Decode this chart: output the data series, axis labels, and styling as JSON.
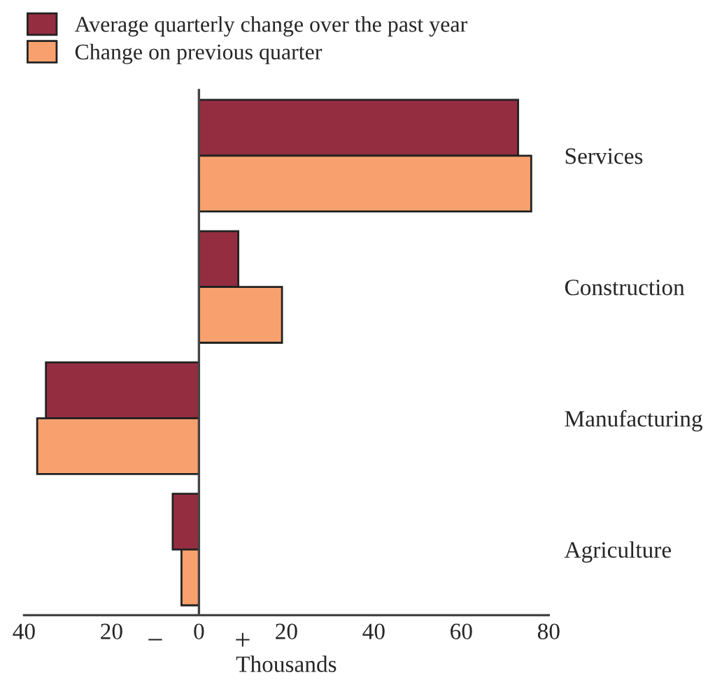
{
  "chart_data": {
    "type": "bar",
    "orientation": "horizontal",
    "xlabel": "Thousands",
    "categories": [
      "Services",
      "Construction",
      "Manufacturing",
      "Agriculture"
    ],
    "series": [
      {
        "name": "Average quarterly change over the past year",
        "color": "#952d40",
        "values": [
          73,
          9,
          -35,
          -6
        ]
      },
      {
        "name": "Change on previous quarter",
        "color": "#f9a16e",
        "values": [
          76,
          19,
          -37,
          -4
        ]
      }
    ],
    "xlim": [
      -40,
      80
    ],
    "xticks": [
      {
        "value": -40,
        "label": "40"
      },
      {
        "value": -20,
        "label": "20"
      },
      0,
      20,
      40,
      60,
      80
    ],
    "annotations": [
      "−",
      "+"
    ],
    "legend": "top left"
  }
}
